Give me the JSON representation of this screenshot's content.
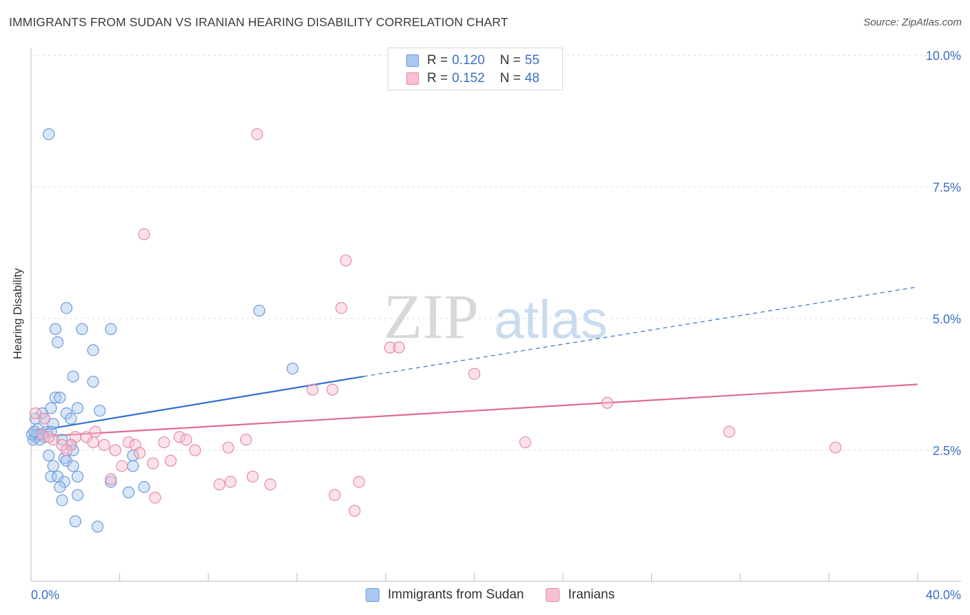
{
  "header": {
    "title": "IMMIGRANTS FROM SUDAN VS IRANIAN HEARING DISABILITY CORRELATION CHART",
    "source": "Source: ZipAtlas.com"
  },
  "watermark": {
    "zip": "ZIP",
    "atlas": "atlas"
  },
  "legend": {
    "series": [
      {
        "r_label": "R =",
        "r_value": "0.120",
        "n_label": "N =",
        "n_value": "55",
        "color": "#a9c8f0",
        "border": "#6a9ad8"
      },
      {
        "r_label": "R =",
        "r_value": "0.152",
        "n_label": "N =",
        "n_value": "48",
        "color": "#f7bfd0",
        "border": "#e48aa8"
      }
    ]
  },
  "bottom_legend": {
    "items": [
      {
        "label": "Immigrants from Sudan",
        "color": "#a9c8f0",
        "border": "#6a9ad8"
      },
      {
        "label": "Iranians",
        "color": "#f7bfd0",
        "border": "#e48aa8"
      }
    ]
  },
  "chart_data": {
    "type": "scatter",
    "title": "IMMIGRANTS FROM SUDAN VS IRANIAN HEARING DISABILITY CORRELATION CHART",
    "xlabel": "",
    "ylabel": "Hearing Disability",
    "xlim": [
      0,
      40
    ],
    "ylim": [
      0,
      10.5
    ],
    "x_tick_labels": [
      "0.0%",
      "40.0%"
    ],
    "y_ticks": [
      2.5,
      5.0,
      7.5,
      10.0
    ],
    "y_tick_labels": [
      "2.5%",
      "5.0%",
      "7.5%",
      "10.0%"
    ],
    "grid": true,
    "legend_position": "top-center",
    "series": [
      {
        "name": "Immigrants from Sudan",
        "color": "#6a9ad8",
        "fill": "rgba(169,200,240,0.45)",
        "trend_color": "#2f6fcc",
        "trend": {
          "x0": 0.0,
          "y0": 2.85,
          "x1": 15.0,
          "y1": 3.9,
          "dash_x1": 40.0,
          "dash_y1": 5.6
        },
        "points": [
          [
            0.8,
            8.5
          ],
          [
            1.6,
            5.2
          ],
          [
            1.1,
            4.8
          ],
          [
            2.3,
            4.8
          ],
          [
            3.6,
            4.8
          ],
          [
            1.2,
            4.55
          ],
          [
            2.8,
            4.4
          ],
          [
            1.9,
            3.9
          ],
          [
            2.8,
            3.8
          ],
          [
            1.1,
            3.5
          ],
          [
            1.3,
            3.5
          ],
          [
            2.1,
            3.3
          ],
          [
            3.1,
            3.25
          ],
          [
            0.5,
            3.2
          ],
          [
            0.9,
            3.3
          ],
          [
            1.6,
            3.2
          ],
          [
            1.8,
            3.1
          ],
          [
            0.6,
            3.1
          ],
          [
            1.0,
            3.0
          ],
          [
            0.2,
            3.1
          ],
          [
            0.3,
            2.9
          ],
          [
            0.7,
            2.85
          ],
          [
            0.9,
            2.85
          ],
          [
            0.4,
            2.8
          ],
          [
            0.2,
            2.75
          ],
          [
            0.1,
            2.7
          ],
          [
            0.6,
            2.75
          ],
          [
            0.3,
            2.8
          ],
          [
            0.4,
            2.7
          ],
          [
            1.4,
            2.7
          ],
          [
            1.8,
            2.6
          ],
          [
            1.9,
            2.5
          ],
          [
            0.8,
            2.4
          ],
          [
            1.5,
            2.35
          ],
          [
            1.6,
            2.3
          ],
          [
            4.6,
            2.4
          ],
          [
            4.6,
            2.2
          ],
          [
            1.0,
            2.2
          ],
          [
            1.9,
            2.2
          ],
          [
            0.9,
            2.0
          ],
          [
            1.2,
            2.0
          ],
          [
            2.1,
            2.0
          ],
          [
            1.5,
            1.9
          ],
          [
            3.6,
            1.9
          ],
          [
            5.1,
            1.8
          ],
          [
            4.4,
            1.7
          ],
          [
            1.3,
            1.8
          ],
          [
            2.1,
            1.65
          ],
          [
            1.4,
            1.55
          ],
          [
            2.0,
            1.15
          ],
          [
            3.0,
            1.05
          ],
          [
            10.3,
            5.15
          ],
          [
            11.8,
            4.05
          ],
          [
            0.05,
            2.8
          ],
          [
            0.15,
            2.85
          ]
        ]
      },
      {
        "name": "Iranians",
        "color": "#e48aa8",
        "fill": "rgba(247,191,208,0.45)",
        "trend_color": "#e06a93",
        "trend": {
          "x0": 0.0,
          "y0": 2.75,
          "x1": 40.0,
          "y1": 3.75
        },
        "points": [
          [
            10.2,
            8.5
          ],
          [
            5.1,
            6.6
          ],
          [
            14.2,
            6.1
          ],
          [
            14.0,
            5.2
          ],
          [
            16.2,
            4.45
          ],
          [
            16.6,
            4.45
          ],
          [
            20.0,
            3.95
          ],
          [
            12.7,
            3.65
          ],
          [
            13.6,
            3.65
          ],
          [
            26.0,
            3.4
          ],
          [
            0.2,
            3.2
          ],
          [
            0.6,
            3.1
          ],
          [
            1.0,
            2.7
          ],
          [
            0.5,
            2.8
          ],
          [
            0.8,
            2.75
          ],
          [
            2.0,
            2.75
          ],
          [
            1.8,
            2.6
          ],
          [
            2.5,
            2.75
          ],
          [
            2.9,
            2.85
          ],
          [
            2.8,
            2.65
          ],
          [
            3.3,
            2.6
          ],
          [
            4.4,
            2.65
          ],
          [
            4.7,
            2.6
          ],
          [
            6.0,
            2.65
          ],
          [
            6.7,
            2.75
          ],
          [
            7.0,
            2.7
          ],
          [
            9.7,
            2.7
          ],
          [
            8.9,
            2.55
          ],
          [
            3.8,
            2.5
          ],
          [
            4.9,
            2.45
          ],
          [
            5.5,
            2.25
          ],
          [
            6.3,
            2.3
          ],
          [
            7.4,
            2.5
          ],
          [
            1.6,
            2.5
          ],
          [
            4.1,
            2.2
          ],
          [
            3.6,
            1.95
          ],
          [
            10.0,
            2.0
          ],
          [
            9.0,
            1.9
          ],
          [
            8.5,
            1.85
          ],
          [
            10.8,
            1.85
          ],
          [
            14.8,
            1.9
          ],
          [
            13.7,
            1.65
          ],
          [
            5.6,
            1.6
          ],
          [
            14.6,
            1.35
          ],
          [
            22.3,
            2.65
          ],
          [
            31.5,
            2.85
          ],
          [
            36.3,
            2.55
          ],
          [
            1.4,
            2.6
          ]
        ]
      }
    ]
  }
}
